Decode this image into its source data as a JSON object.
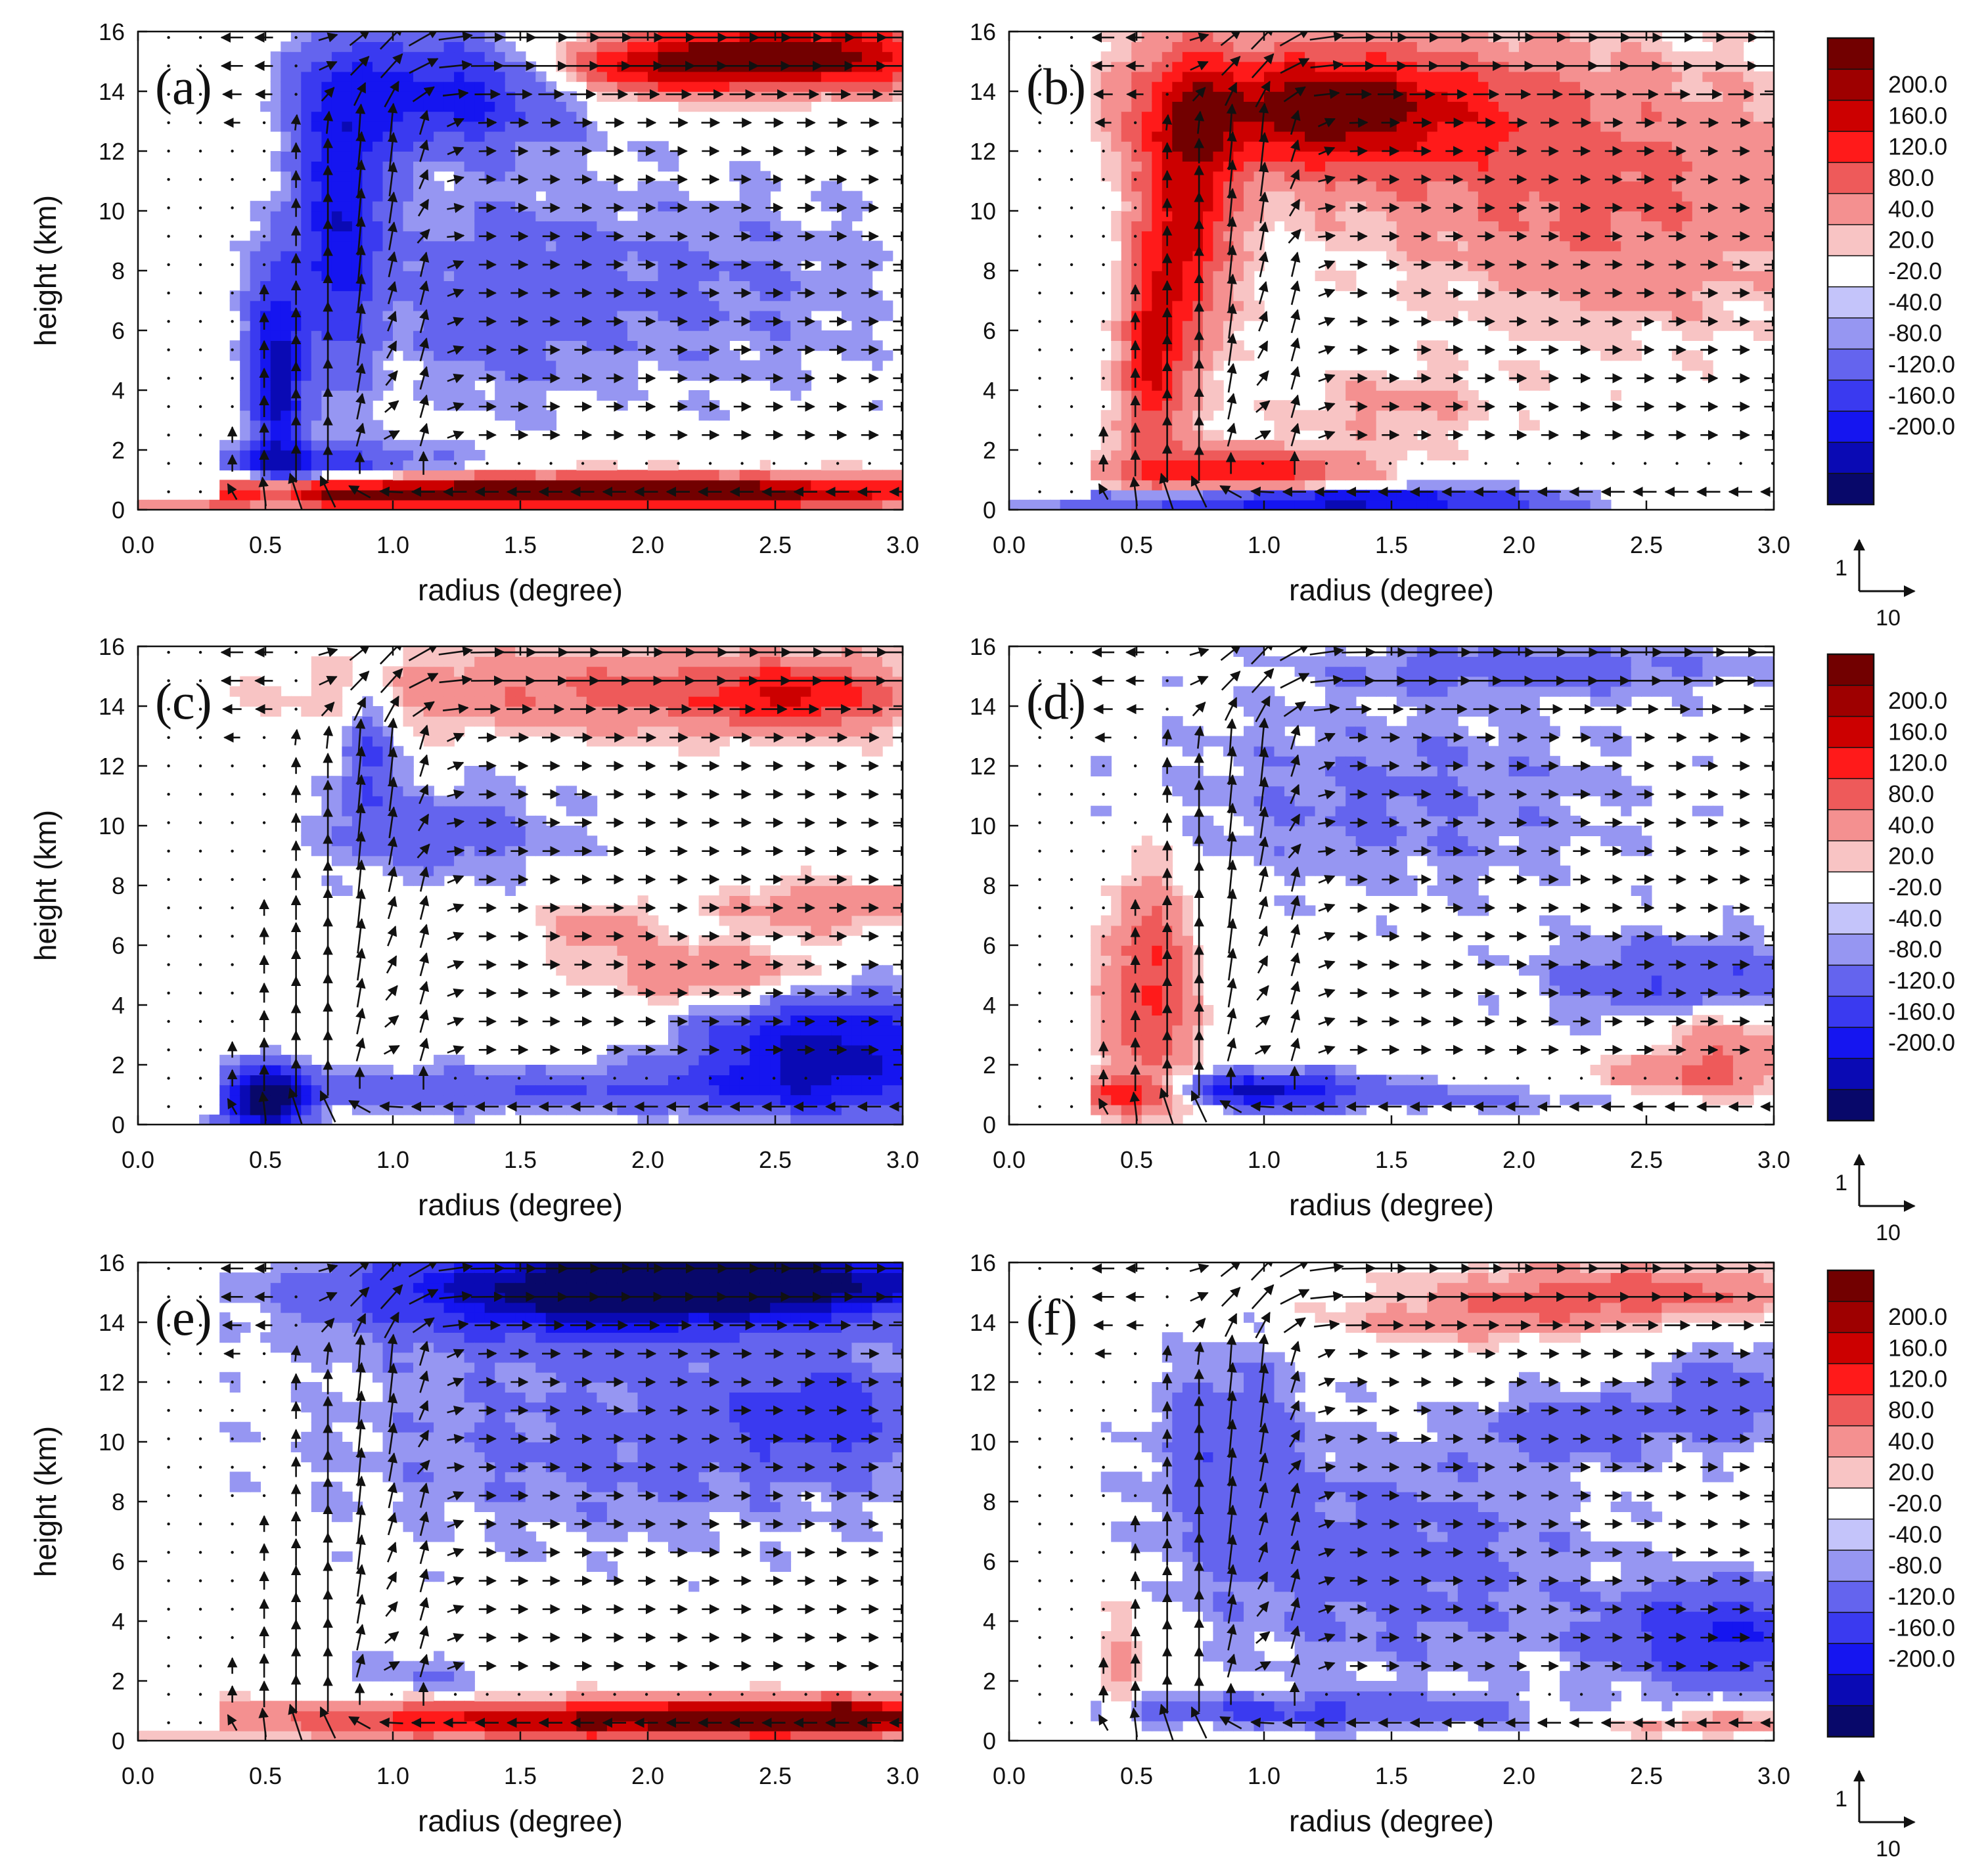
{
  "colors": {
    "levels": [
      "#08086a",
      "#0a0ab4",
      "#1515f0",
      "#3a3af0",
      "#6464ee",
      "#9696f2",
      "#c4c4fa",
      "#ffffff",
      "#f8c4c4",
      "#f49090",
      "#ee5a5a",
      "#ff1a1a",
      "#cc0000",
      "#9e0000",
      "#720000"
    ],
    "arrow": "#111111"
  },
  "chart_data": {
    "type": "heatmap",
    "description_labels": [
      "(a)",
      "(b)",
      "(c)",
      "(d)",
      "(e)",
      "(f)"
    ],
    "panels": [
      {
        "label": "(a)",
        "xlabel": "radius (degree)",
        "ylabel": "height (km)"
      },
      {
        "label": "(b)",
        "xlabel": "radius (degree)",
        "ylabel": ""
      },
      {
        "label": "(c)",
        "xlabel": "radius (degree)",
        "ylabel": "height (km)"
      },
      {
        "label": "(d)",
        "xlabel": "radius (degree)",
        "ylabel": ""
      },
      {
        "label": "(e)",
        "xlabel": "radius (degree)",
        "ylabel": "height (km)"
      },
      {
        "label": "(f)",
        "xlabel": "radius (degree)",
        "ylabel": ""
      }
    ],
    "xlim": [
      0,
      3.0
    ],
    "ylim": [
      0,
      16
    ],
    "xticks": [
      "0.0",
      "0.5",
      "1.0",
      "1.5",
      "2.0",
      "2.5",
      "3.0"
    ],
    "yticks": [
      "0",
      "2",
      "4",
      "6",
      "8",
      "10",
      "12",
      "14",
      "16"
    ],
    "colorbar_labels": [
      "200.0",
      "160.0",
      "120.0",
      "80.0",
      "40.0",
      "20.0",
      "-20.0",
      "-40.0",
      "-80.0",
      "-120.0",
      "-160.0",
      "-200.0"
    ],
    "colorbar_rows": [
      [
        "200.0",
        "160.0",
        "120.0",
        "80.0",
        "40.0",
        "20.0",
        "-20.0",
        "-40.0",
        "-80.0",
        "-120.0",
        "-160.0",
        "-200.0"
      ],
      [
        "200.0",
        "160.0",
        "120.0",
        "80.0",
        "40.0",
        "20.0",
        "-20.0",
        "-40.0",
        "-80.0",
        "-120.0",
        "-160.0",
        "-200.0"
      ],
      [
        "200.0",
        "160.0",
        "120.0",
        "80.0",
        "40.0",
        "20.0",
        "-20.0",
        "-40.0",
        "-80.0",
        "-120.0",
        "-160.0",
        "-200.0"
      ]
    ],
    "reference_vector": {
      "vertical": "1",
      "horizontal": "10"
    },
    "contour_levels": [
      -200,
      -160,
      -120,
      -80,
      -40,
      -20,
      20,
      40,
      80,
      120,
      160,
      200
    ]
  }
}
